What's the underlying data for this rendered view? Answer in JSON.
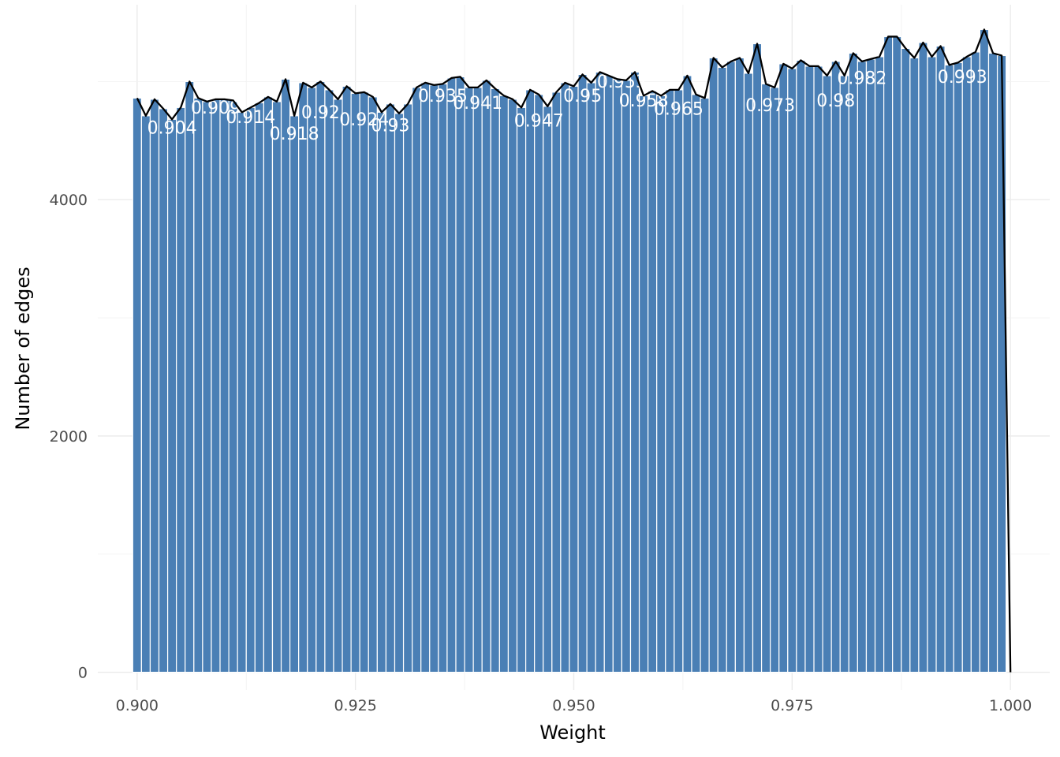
{
  "chart_data": {
    "type": "bar",
    "overlay": "line",
    "xlabel": "Weight",
    "ylabel": "Number of edges",
    "xlim": [
      0.8955,
      1.0045
    ],
    "ylim": [
      -150,
      5650
    ],
    "x_ticks": [
      0.9,
      0.925,
      0.95,
      0.975,
      1.0
    ],
    "x_tick_labels": [
      "0.900",
      "0.925",
      "0.950",
      "0.975",
      "1.000"
    ],
    "y_ticks": [
      0,
      2000,
      4000
    ],
    "y_tick_labels": [
      "0",
      "2000",
      "4000"
    ],
    "grid": true,
    "bar_color": "#4a7fb5",
    "line_color": "#000000",
    "label_color": "#ffffff",
    "bin_width": 0.001,
    "x": [
      0.9,
      0.901,
      0.902,
      0.903,
      0.904,
      0.905,
      0.906,
      0.907,
      0.908,
      0.909,
      0.91,
      0.911,
      0.912,
      0.913,
      0.914,
      0.915,
      0.916,
      0.917,
      0.918,
      0.919,
      0.92,
      0.921,
      0.922,
      0.923,
      0.924,
      0.925,
      0.926,
      0.927,
      0.928,
      0.929,
      0.93,
      0.931,
      0.932,
      0.933,
      0.934,
      0.935,
      0.936,
      0.937,
      0.938,
      0.939,
      0.94,
      0.941,
      0.942,
      0.943,
      0.944,
      0.945,
      0.946,
      0.947,
      0.948,
      0.949,
      0.95,
      0.951,
      0.952,
      0.953,
      0.954,
      0.955,
      0.956,
      0.957,
      0.958,
      0.959,
      0.96,
      0.961,
      0.962,
      0.963,
      0.964,
      0.965,
      0.966,
      0.967,
      0.968,
      0.969,
      0.97,
      0.971,
      0.972,
      0.973,
      0.974,
      0.975,
      0.976,
      0.977,
      0.978,
      0.979,
      0.98,
      0.981,
      0.982,
      0.983,
      0.984,
      0.985,
      0.986,
      0.987,
      0.988,
      0.989,
      0.99,
      0.991,
      0.992,
      0.993,
      0.994,
      0.995,
      0.996,
      0.997,
      0.998,
      0.999,
      1.0
    ],
    "values": [
      4860,
      4710,
      4850,
      4770,
      4680,
      4780,
      5000,
      4860,
      4830,
      4850,
      4850,
      4840,
      4740,
      4780,
      4820,
      4870,
      4830,
      5020,
      4710,
      4990,
      4950,
      5000,
      4930,
      4850,
      4960,
      4900,
      4910,
      4870,
      4740,
      4810,
      4730,
      4810,
      4950,
      4990,
      4970,
      4980,
      5030,
      5040,
      4950,
      4950,
      5010,
      4940,
      4880,
      4850,
      4780,
      4930,
      4890,
      4790,
      4910,
      4990,
      4960,
      5060,
      4990,
      5080,
      5050,
      5020,
      5010,
      5080,
      4880,
      4920,
      4880,
      4930,
      4930,
      5050,
      4890,
      4860,
      5200,
      5120,
      5170,
      5200,
      5070,
      5320,
      4980,
      4950,
      5150,
      5110,
      5180,
      5130,
      5130,
      5050,
      5170,
      5050,
      5240,
      5170,
      5190,
      5210,
      5380,
      5380,
      5280,
      5200,
      5330,
      5210,
      5300,
      5140,
      5160,
      5210,
      5250,
      5440,
      5240,
      5220,
      0
    ],
    "data_labels": [
      {
        "text": "0.918",
        "x": 0.918,
        "y": 4510
      },
      {
        "text": "0.904",
        "x": 0.904,
        "y": 4560
      },
      {
        "text": "0.914",
        "x": 0.913,
        "y": 4650
      },
      {
        "text": "0.92",
        "x": 0.921,
        "y": 4690
      },
      {
        "text": "0.93",
        "x": 0.929,
        "y": 4580
      },
      {
        "text": "0.924",
        "x": 0.926,
        "y": 4630
      },
      {
        "text": "0.947",
        "x": 0.946,
        "y": 4620
      },
      {
        "text": "0.965",
        "x": 0.962,
        "y": 4720
      },
      {
        "text": "0.973",
        "x": 0.9725,
        "y": 4750
      },
      {
        "text": "0.98",
        "x": 0.98,
        "y": 4790
      },
      {
        "text": "0.958",
        "x": 0.958,
        "y": 4790
      },
      {
        "text": "0.953",
        "x": 0.9555,
        "y": 4950
      },
      {
        "text": "0.982",
        "x": 0.983,
        "y": 4980
      },
      {
        "text": "0.993",
        "x": 0.9945,
        "y": 4990
      },
      {
        "text": "0.935",
        "x": 0.935,
        "y": 4830
      },
      {
        "text": "0.941",
        "x": 0.939,
        "y": 4770
      },
      {
        "text": "0.95",
        "x": 0.951,
        "y": 4830
      },
      {
        "text": "0.909",
        "x": 0.909,
        "y": 4730
      }
    ]
  }
}
